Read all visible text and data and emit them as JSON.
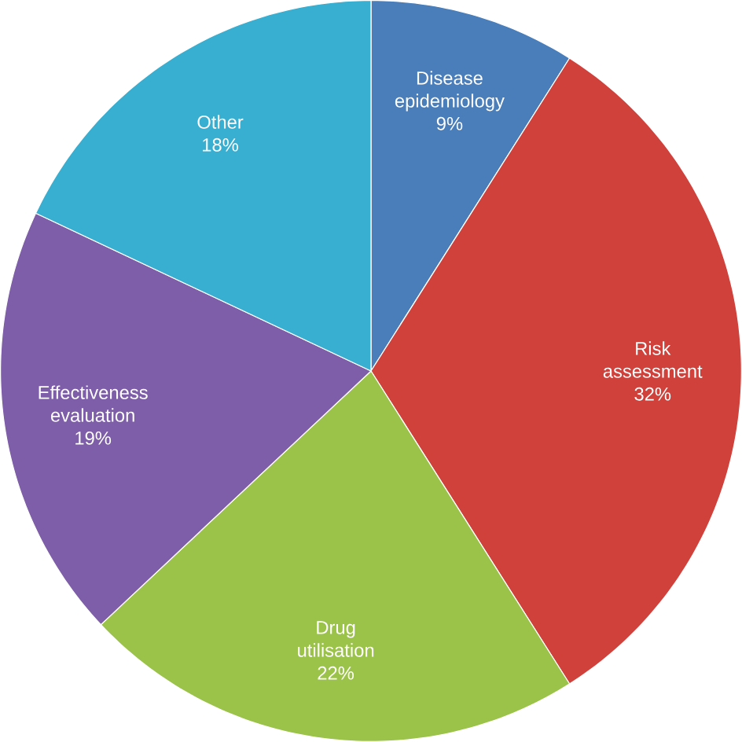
{
  "chart_data": {
    "type": "pie",
    "categories": [
      "Disease epidemiology",
      "Risk assessment",
      "Drug utilisation",
      "Effectiveness evaluation",
      "Other"
    ],
    "values": [
      9,
      32,
      22,
      19,
      18
    ],
    "value_labels": [
      "9%",
      "32%",
      "22%",
      "19%",
      "18%"
    ],
    "colors": [
      "#4a7ebb",
      "#d0413c",
      "#9bc34a",
      "#7e5ea8",
      "#38aed0"
    ]
  }
}
